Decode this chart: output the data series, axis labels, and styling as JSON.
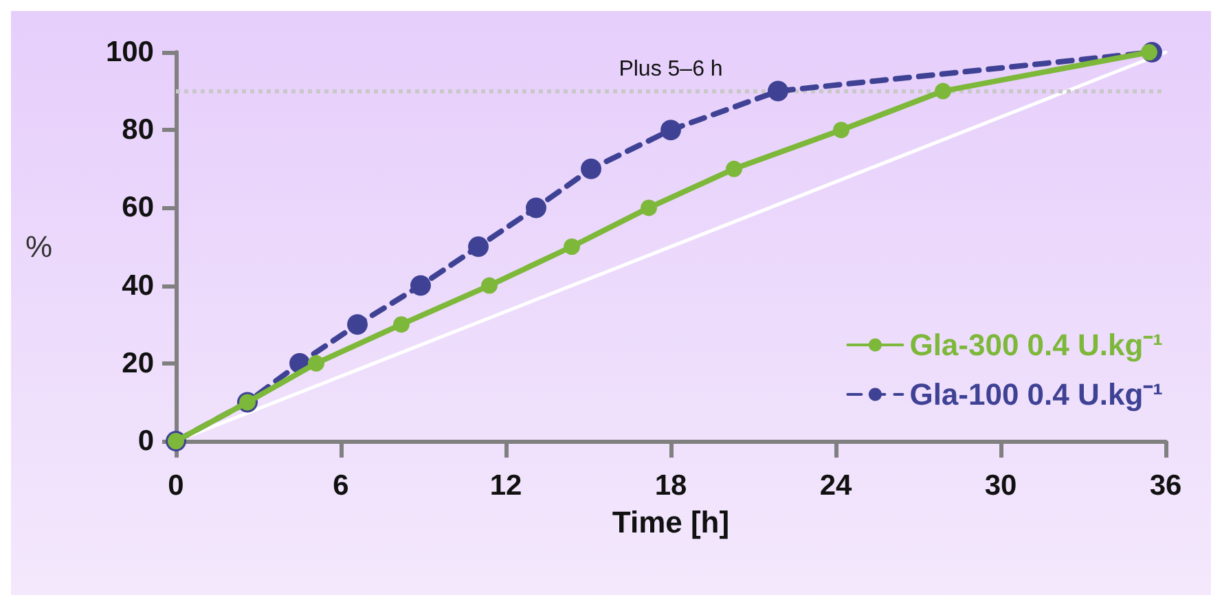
{
  "chart_data": {
    "type": "line",
    "xlabel": "Time [h]",
    "ylabel": "%",
    "xlim": [
      0,
      36
    ],
    "xticks": [
      0,
      6,
      12,
      18,
      24,
      30,
      36
    ],
    "ylim": [
      0,
      100
    ],
    "yticks": [
      0,
      20,
      40,
      60,
      80,
      100
    ],
    "grid": false,
    "legend": "bottom right",
    "marker": "circle",
    "series": [
      {
        "name": "Gla-300 0.4 U.kg⁻¹",
        "color": "#7db83a",
        "line_style": "solid",
        "x": [
          0,
          2.6,
          5.1,
          8.2,
          11.4,
          14.4,
          17.2,
          20.3,
          24.2,
          27.9,
          35.4
        ],
        "values": [
          0,
          10,
          20,
          30,
          40,
          50,
          60,
          70,
          80,
          90,
          100
        ]
      },
      {
        "name": "Gla-100 0.4 U.kg⁻¹",
        "color": "#3f4294",
        "line_style": "dashed",
        "x": [
          0,
          2.6,
          4.5,
          6.6,
          8.9,
          11,
          13.1,
          15.1,
          18,
          21.9,
          35.5
        ],
        "values": [
          0,
          10,
          20,
          30,
          40,
          50,
          60,
          70,
          80,
          90,
          100
        ]
      },
      {
        "color": "#ffffff",
        "line_style": "solid",
        "marker": "none",
        "x": [
          0,
          36
        ],
        "values": [
          0,
          100
        ]
      }
    ],
    "ref_lines": [
      {
        "axis": "y",
        "value": 90,
        "label": "Plus 5–6 h",
        "color": "#c8c8c8",
        "line_style": "dotted"
      }
    ]
  }
}
